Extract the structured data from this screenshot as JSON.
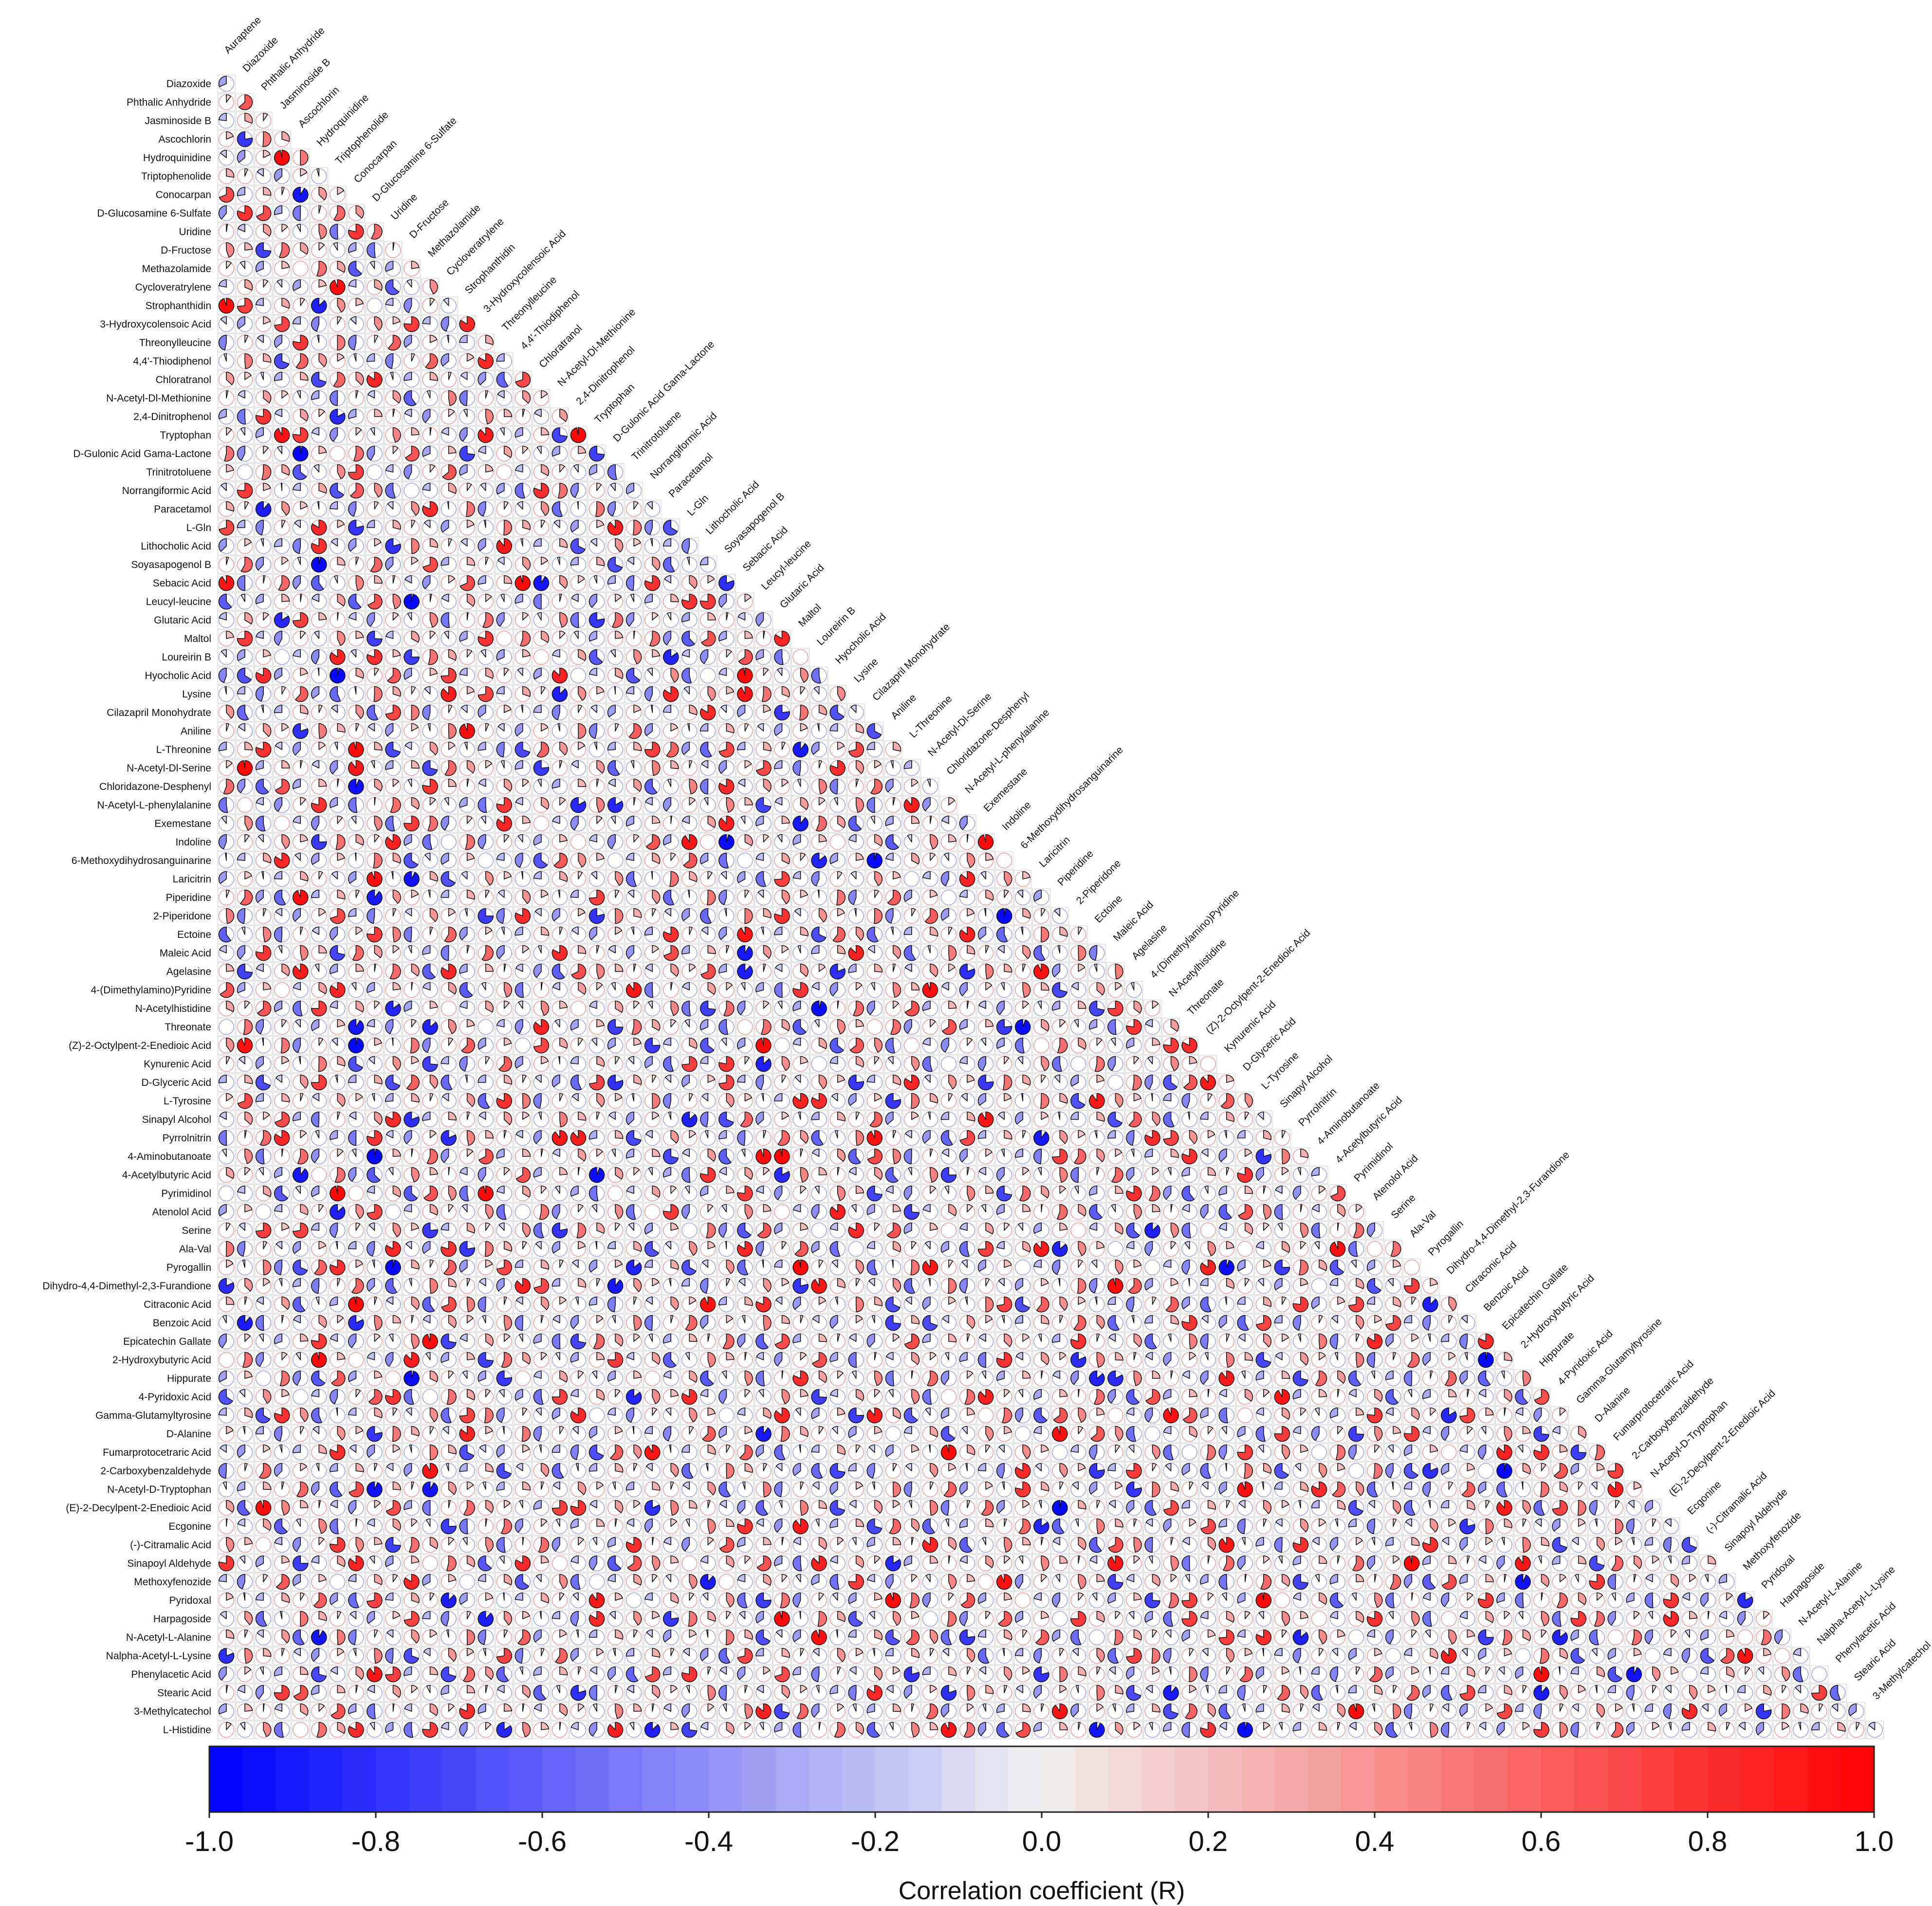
{
  "chart_data": {
    "type": "heatmap",
    "subtype": "lower-triangle correlation matrix drawn as pies; the filled sector of each pie is proportional to |R|, red for positive and blue for negative R",
    "variables": [
      "Auraptene",
      "Diazoxide",
      "Phthalic Anhydride",
      "Jasminoside B",
      "Ascochlorin",
      "Hydroquinidine",
      "Triptophenolide",
      "Conocarpan",
      "D-Glucosamine 6-Sulfate",
      "Uridine",
      "D-Fructose",
      "Methazolamide",
      "Cycloveratrylene",
      "Strophanthidin",
      "3-Hydroxycolensoic Acid",
      "Threonylleucine",
      "4,4'-Thiodiphenol",
      "Chloratranol",
      "N-Acetyl-Dl-Methionine",
      "2,4-Dinitrophenol",
      "Tryptophan",
      "D-Gulonic Acid Gama-Lactone",
      "Trinitrotoluene",
      "Norrangiformic Acid",
      "Paracetamol",
      "L-Gln",
      "Lithocholic Acid",
      "Soyasapogenol B",
      "Sebacic Acid",
      "Leucyl-leucine",
      "Glutaric Acid",
      "Maltol",
      "Loureirin B",
      "Hyocholic Acid",
      "Lysine",
      "Cilazapril Monohydrate",
      "Aniline",
      "L-Threonine",
      "N-Acetyl-Dl-Serine",
      "Chloridazone-Desphenyl",
      "N-Acetyl-L-phenylalanine",
      "Exemestane",
      "Indoline",
      "6-Methoxydihydrosanguinarine",
      "Laricitrin",
      "Piperidine",
      "2-Piperidone",
      "Ectoine",
      "Maleic Acid",
      "Agelasine",
      "4-(Dimethylamino)Pyridine",
      "N-Acetylhistidine",
      "Threonate",
      "(Z)-2-Octylpent-2-Enedioic Acid",
      "Kynurenic Acid",
      "D-Glyceric Acid",
      "L-Tyrosine",
      "Sinapyl Alcohol",
      "Pyrrolnitrin",
      "4-Aminobutanoate",
      "4-Acetylbutyric Acid",
      "Pyrimidinol",
      "Atenolol Acid",
      "Serine",
      "Ala-Val",
      "Pyrogallin",
      "Dihydro-4,4-Dimethyl-2,3-Furandione",
      "Citraconic Acid",
      "Benzoic Acid",
      "Epicatechin Gallate",
      "2-Hydroxybutyric Acid",
      "Hippurate",
      "4-Pyridoxic Acid",
      "Gamma-Glutamyltyrosine",
      "D-Alanine",
      "Fumarprotocetraric Acid",
      "2-Carboxybenzaldehyde",
      "N-Acetyl-D-Tryptophan",
      "(E)-2-Decylpent-2-Enedioic Acid",
      "Ecgonine",
      "(-)-Citramalic Acid",
      "Sinapoyl Aldehyde",
      "Methoxyfenozide",
      "Pyridoxal",
      "Harpagoside",
      "N-Acetyl-L-Alanine",
      "Nalpha-Acetyl-L-Lysine",
      "Phenylacetic Acid",
      "Stearic Acid",
      "3-Methylcatechol",
      "L-Histidine"
    ],
    "legend_title": "Correlation coefficient (R)",
    "color_range": [
      -1.0,
      1.0
    ],
    "colorbar_ticks": [
      "-1.0",
      "-0.8",
      "-0.6",
      "-0.4",
      "-0.2",
      "0.0",
      "0.2",
      "0.4",
      "0.6",
      "0.8",
      "1.0"
    ],
    "colors": {
      "negative": "#0000ff",
      "zero": "#f0f0f0",
      "positive": "#ff0000"
    },
    "note": "Cell correlation values are not printed in the image; the values drawn are approximate readings generated per cell."
  }
}
